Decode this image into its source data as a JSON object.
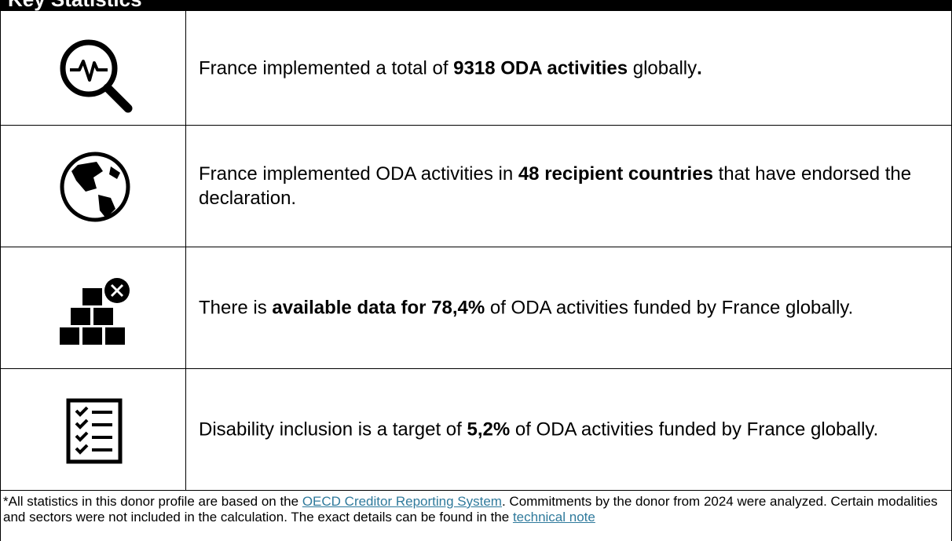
{
  "header": {
    "title": "Key Statistics"
  },
  "rows": [
    {
      "segments": [
        {
          "text": "France implemented a total of ",
          "bold": false
        },
        {
          "text": "9318 ODA activities",
          "bold": true
        },
        {
          "text": " globally",
          "bold": false
        },
        {
          "text": ".",
          "bold": true
        }
      ]
    },
    {
      "segments": [
        {
          "text": "France implemented ODA activities in ",
          "bold": false
        },
        {
          "text": "48 recipient countries",
          "bold": true
        },
        {
          "text": " that have endorsed the declaration.",
          "bold": false
        }
      ]
    },
    {
      "segments": [
        {
          "text": "There is ",
          "bold": false
        },
        {
          "text": "available data for 78,4%",
          "bold": true
        },
        {
          "text": " of ODA activities funded by France globally.",
          "bold": false
        }
      ]
    },
    {
      "segments": [
        {
          "text": "Disability inclusion is a target of ",
          "bold": false
        },
        {
          "text": "5,2%",
          "bold": true
        },
        {
          "text": " of ODA activities funded by France globally.",
          "bold": false
        }
      ]
    }
  ],
  "footer": {
    "segments": [
      {
        "text": "*All statistics in this donor profile are based on the ",
        "link": false
      },
      {
        "text": "OECD Creditor Reporting System",
        "link": true
      },
      {
        "text": ". Commitments by the donor from 2024 were analyzed. Certain modalities and sectors were not included in the calculation. The exact details can be found in the ",
        "link": false
      },
      {
        "text": "technical note",
        "link": true
      }
    ]
  }
}
